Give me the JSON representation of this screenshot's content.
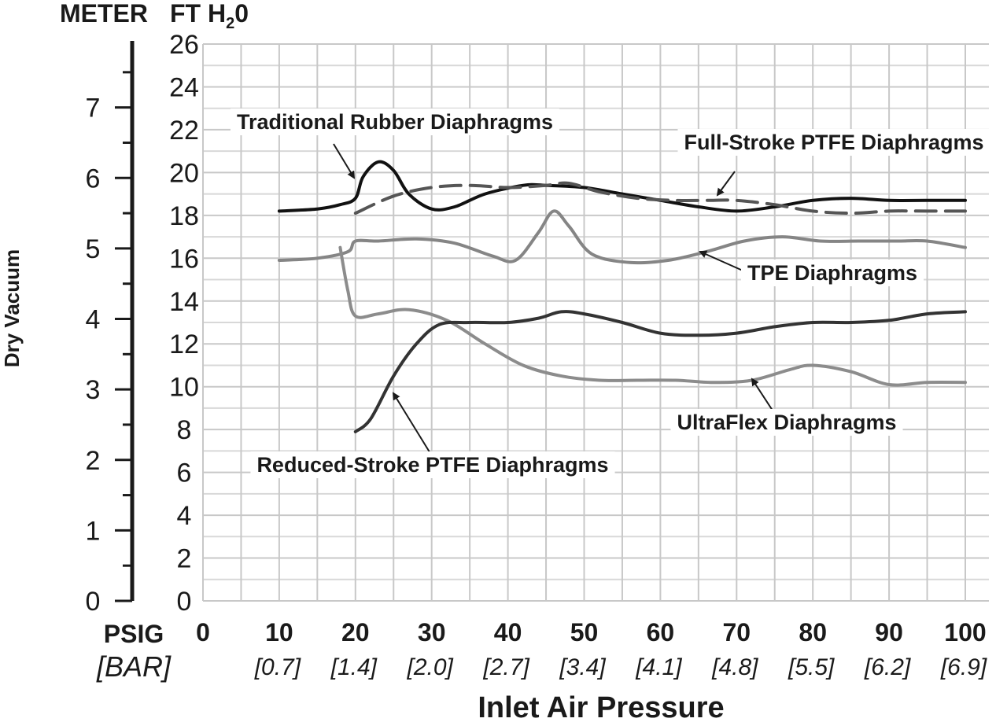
{
  "chart_data": {
    "type": "line",
    "xlabel": "Inlet Air Pressure",
    "ylabel": "Dry Vacuum",
    "x_unit": "PSIG",
    "x_unit_secondary": "[BAR]",
    "y_unit_ft": "FT H",
    "y_unit_ft_sub": "2",
    "y_unit_ft_tail": "0",
    "y_unit_meter": "METER",
    "xlim": [
      0,
      100
    ],
    "ylim": [
      0,
      26
    ],
    "ylim_meter": [
      0,
      7.9
    ],
    "x_ticks": [
      "0",
      "10",
      "20",
      "30",
      "40",
      "50",
      "60",
      "70",
      "80",
      "90",
      "100"
    ],
    "x_ticks_bar": [
      "",
      "[0.7]",
      "[1.4]",
      "[2.0]",
      "[2.7]",
      "[3.4]",
      "[4.1]",
      "[4.8]",
      "[5.5]",
      "[6.2]",
      "[6.9]"
    ],
    "y_ticks_ft": [
      "0",
      "2",
      "4",
      "6",
      "8",
      "10",
      "12",
      "14",
      "16",
      "18",
      "20",
      "22",
      "24",
      "26"
    ],
    "y_ticks_meter": [
      "0",
      "1",
      "2",
      "3",
      "4",
      "5",
      "6",
      "7"
    ],
    "grid": true,
    "series": [
      {
        "name": "Traditional Rubber Diaphragms",
        "color": "#111111",
        "dash": false,
        "x": [
          10,
          15,
          18,
          20,
          21,
          23,
          25,
          27,
          30,
          33,
          37,
          42,
          45,
          50,
          55,
          60,
          65,
          70,
          75,
          80,
          85,
          90,
          95,
          100
        ],
        "y": [
          18.2,
          18.3,
          18.5,
          18.8,
          19.8,
          20.5,
          20.1,
          19.0,
          18.3,
          18.4,
          19.0,
          19.4,
          19.4,
          19.3,
          19.0,
          18.7,
          18.4,
          18.2,
          18.4,
          18.7,
          18.8,
          18.7,
          18.7,
          18.7
        ]
      },
      {
        "name": "Full-Stroke PTFE Diaphragms",
        "color": "#555555",
        "dash": true,
        "x": [
          20,
          25,
          30,
          35,
          40,
          45,
          48,
          52,
          57,
          62,
          66,
          70,
          75,
          80,
          85,
          90,
          95,
          100
        ],
        "y": [
          18.1,
          18.9,
          19.3,
          19.4,
          19.3,
          19.4,
          19.5,
          19.1,
          18.8,
          18.7,
          18.7,
          18.7,
          18.5,
          18.2,
          18.1,
          18.2,
          18.2,
          18.2
        ]
      },
      {
        "name": "TPE Diaphragms",
        "color": "#858585",
        "dash": false,
        "x": [
          10,
          15,
          19,
          20,
          23,
          28,
          33,
          38,
          41,
          44,
          46,
          48,
          51,
          56,
          61,
          66,
          71,
          76,
          81,
          86,
          91,
          95,
          100
        ],
        "y": [
          15.9,
          16.0,
          16.3,
          16.8,
          16.8,
          16.9,
          16.7,
          16.1,
          15.9,
          17.2,
          18.2,
          17.5,
          16.2,
          15.8,
          15.9,
          16.3,
          16.8,
          17.0,
          16.8,
          16.8,
          16.8,
          16.8,
          16.5
        ]
      },
      {
        "name": "UltraFlex Diaphragms",
        "color": "#8c8c8c",
        "dash": false,
        "x": [
          18,
          19,
          20,
          23,
          27,
          32,
          37,
          42,
          47,
          52,
          57,
          62,
          67,
          72,
          77,
          80,
          85,
          90,
          95,
          100
        ],
        "y": [
          16.5,
          14.5,
          13.3,
          13.4,
          13.6,
          13.1,
          12.0,
          11.0,
          10.5,
          10.3,
          10.3,
          10.3,
          10.2,
          10.3,
          10.8,
          11.0,
          10.7,
          10.1,
          10.2,
          10.2
        ]
      },
      {
        "name": "Reduced-Stroke PTFE Diaphragms",
        "color": "#333333",
        "dash": false,
        "x": [
          20,
          22,
          25,
          28,
          31,
          35,
          40,
          44,
          47,
          50,
          55,
          60,
          65,
          70,
          75,
          80,
          85,
          90,
          95,
          100
        ],
        "y": [
          7.9,
          8.5,
          10.5,
          12.0,
          12.9,
          13.0,
          13.0,
          13.2,
          13.5,
          13.4,
          13.0,
          12.5,
          12.4,
          12.5,
          12.8,
          13.0,
          13.0,
          13.1,
          13.4,
          13.5
        ]
      }
    ]
  }
}
